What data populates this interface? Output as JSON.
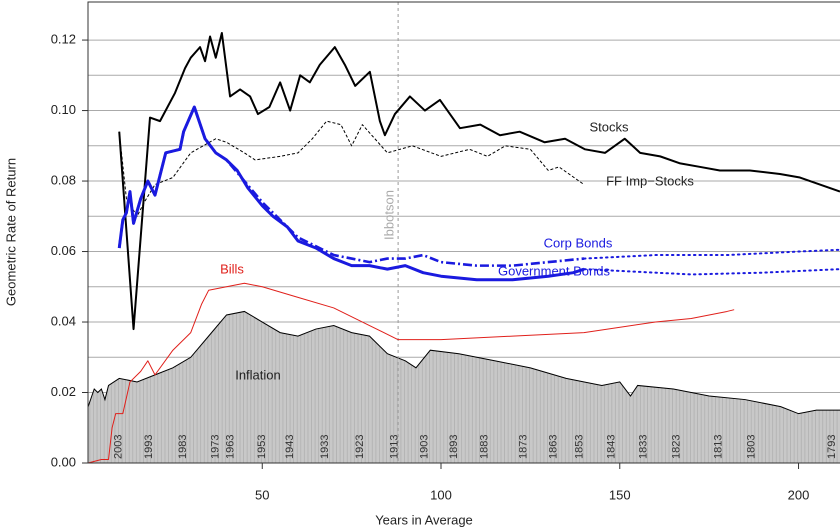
{
  "chart_data": {
    "type": "line",
    "x_label": "Years in Average",
    "y_label": "Geometric Rate of Return",
    "xlim": [
      1.26,
      211.6
    ],
    "ylim": [
      0,
      0.1308
    ],
    "xticks": [
      {
        "value": 50,
        "label": "50"
      },
      {
        "value": 100,
        "label": "100"
      },
      {
        "value": 150,
        "label": "150"
      },
      {
        "value": 200,
        "label": "200"
      }
    ],
    "yticks": [
      {
        "value": 0,
        "label": "0.00"
      },
      {
        "value": 0.02,
        "label": "0.02"
      },
      {
        "value": 0.04,
        "label": "0.04"
      },
      {
        "value": 0.06,
        "label": "0.06"
      },
      {
        "value": 0.08,
        "label": "0.08"
      },
      {
        "value": 0.1,
        "label": "0.10"
      },
      {
        "value": 0.12,
        "label": "0.12"
      }
    ],
    "ygrid": [
      0.01,
      0.02,
      0.03,
      0.04,
      0.05,
      0.06,
      0.07,
      0.08,
      0.09,
      0.1,
      0.11,
      0.12
    ],
    "grid": true,
    "reference_line": {
      "x": 88,
      "label": "Ibbotson"
    },
    "year_labels": {
      "x": [
        9.8,
        18.3,
        27.8,
        37,
        41.2,
        49.9,
        57.8,
        67.6,
        77.3,
        87,
        95.4,
        103.6,
        112.2,
        123.1,
        131.5,
        138.7,
        147.7,
        156.6,
        165.9,
        177.7,
        186.9,
        209.4
      ],
      "labels": [
        2003,
        1993,
        1983,
        1973,
        1963,
        1953,
        1943,
        1933,
        1923,
        1913,
        1903,
        1893,
        1883,
        1873,
        1863,
        1853,
        1843,
        1833,
        1823,
        1813,
        1803,
        1793
      ]
    },
    "series": [
      {
        "name": "Stocks",
        "color": "#000000",
        "style": "solid",
        "x": [
          10,
          14,
          18.6,
          21.4,
          25.6,
          28.4,
          30,
          32.6,
          34,
          35.4,
          37,
          38.7,
          41,
          43.8,
          46.6,
          48.8,
          52,
          55,
          57.8,
          60.6,
          63.3,
          66.1,
          70.3,
          73.1,
          76,
          80.1,
          82.9,
          84.3,
          87.1,
          91.3,
          95.5,
          99.7,
          105.3,
          111,
          116.5,
          122,
          129,
          134.7,
          140.3,
          145.9,
          151.4,
          155.7,
          161.3,
          166.9,
          172.5,
          178,
          186.4,
          194.8,
          200.4,
          206,
          211.6
        ],
        "values": [
          0.094,
          0.038,
          0.098,
          0.097,
          0.105,
          0.112,
          0.115,
          0.118,
          0.114,
          0.121,
          0.115,
          0.122,
          0.104,
          0.106,
          0.104,
          0.099,
          0.101,
          0.108,
          0.1,
          0.11,
          0.108,
          0.113,
          0.118,
          0.113,
          0.107,
          0.111,
          0.097,
          0.093,
          0.099,
          0.104,
          0.1,
          0.103,
          0.095,
          0.096,
          0.093,
          0.094,
          0.091,
          0.092,
          0.089,
          0.088,
          0.092,
          0.088,
          0.087,
          0.085,
          0.084,
          0.083,
          0.083,
          0.082,
          0.081,
          0.079,
          0.077
        ]
      },
      {
        "name": "FF Imp−Stocks",
        "color": "#000000",
        "style": "dashed",
        "x": [
          10,
          12,
          15,
          17,
          20,
          25,
          30,
          37,
          40,
          45,
          48,
          55,
          60,
          64,
          68,
          72,
          75,
          78,
          85,
          92,
          100,
          108,
          113,
          118,
          125,
          130,
          133,
          140
        ],
        "values": [
          0.094,
          0.075,
          0.07,
          0.074,
          0.079,
          0.081,
          0.088,
          0.092,
          0.091,
          0.088,
          0.086,
          0.087,
          0.088,
          0.092,
          0.097,
          0.096,
          0.09,
          0.096,
          0.088,
          0.09,
          0.087,
          0.089,
          0.087,
          0.09,
          0.089,
          0.083,
          0.084,
          0.079
        ]
      },
      {
        "name": "Corp Bonds",
        "color": "#1a1adf",
        "style": "dashdot",
        "dotted_after": 140,
        "x": [
          10,
          11,
          12,
          13,
          14,
          16,
          18,
          20,
          23,
          27,
          28,
          31,
          34,
          37,
          40,
          50,
          60,
          70,
          80,
          85,
          90,
          95,
          100,
          110,
          120,
          130,
          140,
          160,
          180,
          200,
          211.6
        ],
        "values": [
          0.061,
          0.069,
          0.071,
          0.077,
          0.068,
          0.075,
          0.08,
          0.076,
          0.088,
          0.089,
          0.094,
          0.101,
          0.092,
          0.088,
          0.086,
          0.074,
          0.064,
          0.059,
          0.057,
          0.058,
          0.058,
          0.059,
          0.057,
          0.056,
          0.056,
          0.057,
          0.058,
          0.059,
          0.059,
          0.06,
          0.0605
        ]
      },
      {
        "name": "Government Bonds",
        "color": "#1a1adf",
        "style": "solid",
        "dotted_after": 140,
        "x": [
          10,
          11,
          12,
          13,
          14,
          16,
          18,
          20,
          23,
          27,
          28,
          31,
          34,
          37,
          40,
          43,
          46,
          50,
          53,
          57,
          60,
          65,
          70,
          75,
          80,
          85,
          90,
          95,
          100,
          110,
          120,
          130,
          137,
          140,
          150,
          170,
          190,
          211.6
        ],
        "values": [
          0.061,
          0.069,
          0.071,
          0.077,
          0.068,
          0.075,
          0.08,
          0.076,
          0.088,
          0.089,
          0.094,
          0.101,
          0.092,
          0.088,
          0.086,
          0.083,
          0.078,
          0.073,
          0.07,
          0.067,
          0.063,
          0.061,
          0.058,
          0.056,
          0.056,
          0.055,
          0.056,
          0.054,
          0.053,
          0.052,
          0.052,
          0.053,
          0.054,
          0.055,
          0.0545,
          0.0535,
          0.054,
          0.055
        ]
      },
      {
        "name": "Bills",
        "color": "#e0201b",
        "style": "thin",
        "x": [
          1.3,
          5,
          7,
          8,
          9,
          11,
          13,
          16,
          18,
          20,
          25,
          30,
          33,
          35,
          40,
          45,
          50,
          60,
          70,
          80,
          88,
          100,
          120,
          140,
          160,
          170,
          180,
          182
        ],
        "values": [
          0,
          0.001,
          0.001,
          0.01,
          0.014,
          0.014,
          0.023,
          0.026,
          0.029,
          0.025,
          0.032,
          0.037,
          0.045,
          0.049,
          0.05,
          0.051,
          0.05,
          0.047,
          0.044,
          0.039,
          0.035,
          0.035,
          0.036,
          0.037,
          0.04,
          0.041,
          0.043,
          0.0435
        ]
      },
      {
        "name": "Inflation",
        "color": "#000000",
        "style": "area",
        "fill": "#c8c8c8",
        "x": [
          1.3,
          3,
          4,
          5,
          6,
          7,
          10,
          15,
          20,
          25,
          30,
          35,
          40,
          45,
          50,
          55,
          60,
          65,
          70,
          75,
          80,
          85,
          90,
          93,
          97,
          105,
          115,
          125,
          135,
          145,
          150,
          153,
          155,
          165,
          175,
          185,
          195,
          200,
          205,
          211.6
        ],
        "values": [
          0.016,
          0.021,
          0.02,
          0.021,
          0.018,
          0.022,
          0.024,
          0.023,
          0.025,
          0.027,
          0.03,
          0.036,
          0.042,
          0.043,
          0.04,
          0.037,
          0.036,
          0.038,
          0.039,
          0.037,
          0.036,
          0.031,
          0.029,
          0.027,
          0.032,
          0.031,
          0.029,
          0.027,
          0.024,
          0.022,
          0.023,
          0.019,
          0.022,
          0.021,
          0.019,
          0.018,
          0.016,
          0.014,
          0.015,
          0.015
        ]
      }
    ]
  }
}
